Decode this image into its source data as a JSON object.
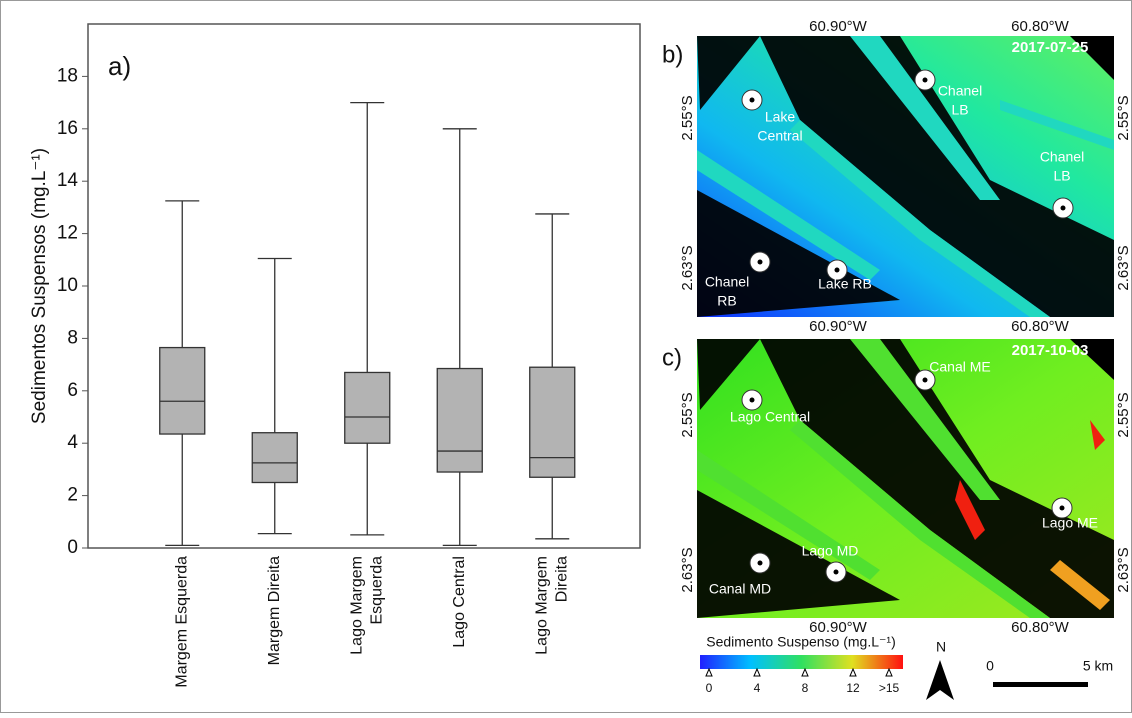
{
  "chart_data": {
    "type": "box",
    "panel_label": "a)",
    "y_label": "Sedimentos Suspensos (mg.L⁻¹)",
    "categories": [
      [
        "Margem Esquerda"
      ],
      [
        "Margem Direita"
      ],
      [
        "Lago Margem",
        "Esquerda"
      ],
      [
        "Lago Central"
      ],
      [
        "Lago Margem",
        "Direita"
      ]
    ],
    "min": [
      0.1,
      0.55,
      0.5,
      0.1,
      0.35
    ],
    "q1": [
      4.35,
      2.5,
      4.0,
      2.9,
      2.7
    ],
    "median": [
      5.6,
      3.25,
      5.0,
      3.7,
      3.45
    ],
    "q3": [
      7.65,
      4.4,
      6.7,
      6.85,
      6.9
    ],
    "max": [
      13.25,
      11.05,
      17.0,
      16.0,
      12.75
    ],
    "color": "#b3b3b3",
    "ylim": [
      0,
      20
    ],
    "yticks": [
      0,
      2,
      4,
      6,
      8,
      10,
      12,
      14,
      16,
      18
    ]
  },
  "maps": [
    {
      "panel_label": "b)",
      "date": "2017-07-25",
      "sites": [
        {
          "label": [
            "Lake",
            "Central"
          ]
        },
        {
          "label": [
            "Chanel",
            "LB"
          ]
        },
        {
          "label": [
            "Chanel",
            "LB"
          ]
        },
        {
          "label": [
            "Chanel",
            "RB"
          ]
        },
        {
          "label": [
            "Lake RB"
          ]
        }
      ]
    },
    {
      "panel_label": "c)",
      "date": "2017-10-03",
      "sites": [
        {
          "label": [
            "Lago Central"
          ]
        },
        {
          "label": [
            "Canal ME"
          ]
        },
        {
          "label": [
            "Lago ME"
          ]
        },
        {
          "label": [
            "Canal MD"
          ]
        },
        {
          "label": [
            "Lago MD"
          ]
        }
      ]
    }
  ],
  "coords": {
    "lon": [
      "60.90°W",
      "60.80°W"
    ],
    "lat": [
      "2.55°S",
      "2.63°S"
    ]
  },
  "colorbar": {
    "title": "Sedimento Suspenso (mg.L⁻¹)",
    "ticks": [
      0,
      4,
      8,
      12,
      {
        "value": 15,
        "label": ">15"
      }
    ]
  },
  "north": "N",
  "scale": [
    "0",
    "5 km"
  ]
}
